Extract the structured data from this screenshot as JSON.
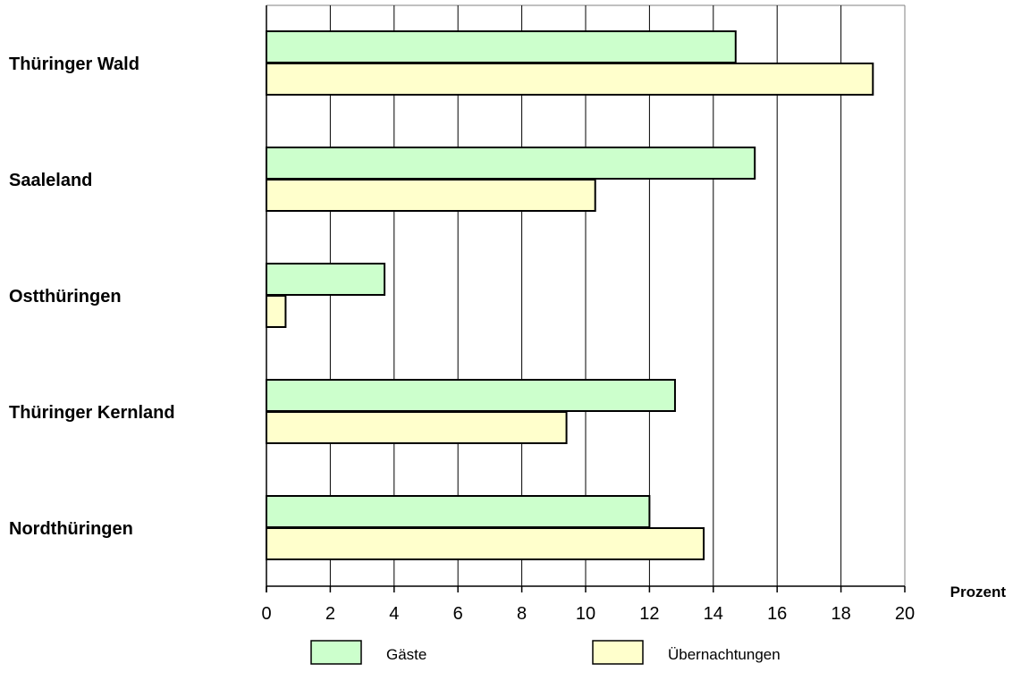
{
  "chart_data": {
    "type": "bar",
    "orientation": "horizontal",
    "categories": [
      "Thüringer Wald",
      "Saaleland",
      "Ostthüringen",
      "Thüringer Kernland",
      "Nordthüringen"
    ],
    "series": [
      {
        "name": "Gäste",
        "color": "#ccffcc",
        "values": [
          14.7,
          15.3,
          3.7,
          12.8,
          12.0
        ]
      },
      {
        "name": "Übernachtungen",
        "color": "#ffffcc",
        "values": [
          19.0,
          10.3,
          0.6,
          9.4,
          13.7
        ]
      }
    ],
    "xlim": [
      0,
      20
    ],
    "xticks": [
      "0",
      "2",
      "4",
      "6",
      "8",
      "10",
      "12",
      "14",
      "16",
      "18",
      "20"
    ],
    "unit_label": "Prozent",
    "grid": true,
    "legend_position": "bottom"
  }
}
